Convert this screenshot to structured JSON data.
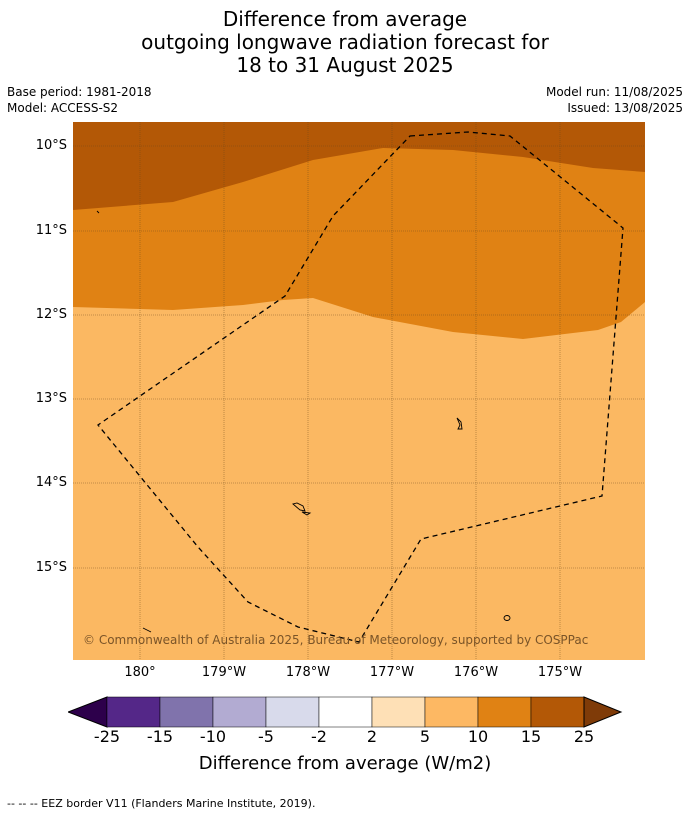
{
  "title": {
    "line1": "Difference from average",
    "line2": "outgoing longwave radiation forecast for",
    "line3": "18 to 31 August 2025"
  },
  "meta": {
    "base_period": "Base period: 1981-2018",
    "model": "Model: ACCESS-S2",
    "model_run": "Model run: 11/08/2025",
    "issued": "Issued: 13/08/2025"
  },
  "map": {
    "lat_labels": [
      "10°S",
      "11°S",
      "12°S",
      "13°S",
      "14°S",
      "15°S"
    ],
    "lon_labels": [
      "180°",
      "179°W",
      "178°W",
      "177°W",
      "176°W",
      "175°W"
    ],
    "credit": "© Commonwealth of Australia 2025, Bureau of Meteorology, supported by COSPPac",
    "colors": {
      "band_5_10": "#fbb862",
      "band_10_15": "#e08214",
      "band_15_25": "#b35806",
      "gridline": "#6b4a1e"
    }
  },
  "legend": {
    "title": "Difference from average (W/m2)",
    "ticks": [
      "-25",
      "-15",
      "-10",
      "-5",
      "-2",
      "2",
      "5",
      "10",
      "15",
      "25"
    ],
    "colors": {
      "below_min": "#2d004b",
      "bins": [
        "#542788",
        "#8073ac",
        "#b2abd2",
        "#d8daeb",
        "#ffffff",
        "#fee0b6",
        "#fdb863",
        "#e08214",
        "#b35806"
      ],
      "above_max": "#7f3b08"
    }
  },
  "footnote": "--  --  -- EEZ border V11 (Flanders Marine Institute, 2019)."
}
